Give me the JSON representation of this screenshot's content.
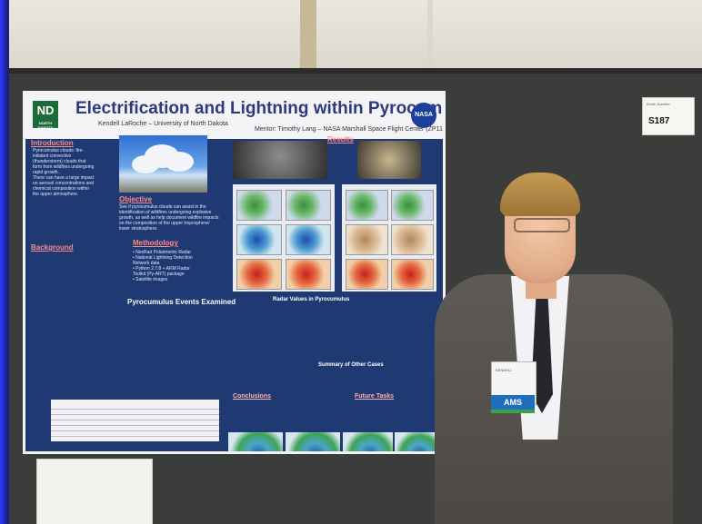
{
  "poster": {
    "title": "Electrification and Lightning within Pyrocumulus Clouds",
    "author": "Kendell LaRoche – University of North Dakota",
    "mentor": "Mentor: Timothy Lang – NASA Marshall Space Flight Center (ZP11)",
    "und_logo": "ND",
    "und_logo_sub": "NORTH DAKOTA",
    "nasa_logo": "NASA",
    "sections": {
      "introduction": "Introduction",
      "background": "Background",
      "objective": "Objective",
      "methodology": "Methodology",
      "results": "Results",
      "events_examined": "Pyrocumulus Events Examined",
      "conclusions": "Conclusions",
      "future_tasks": "Future Tasks",
      "radar_values": "Radar Values in Pyrocumulus",
      "summary_other": "Summary of Other Cases"
    },
    "intro_lines": [
      "Pyrocumulus clouds: fire-",
      "initiated convective",
      "(thunderstorm) clouds that",
      "form from wildfires undergoing",
      "rapid growth.",
      "There can have a large impact",
      "on aerosol concentrations and",
      "chemical composition within",
      "the upper atmosphere."
    ],
    "objective_lines": [
      "See if pyrocumulus clouds can assist in the",
      "identification of wildfires undergoing explosive",
      "growth, as well as help document wildfire impacts",
      "on the composition of the upper troposphere/",
      "lower stratosphere."
    ],
    "method_lines": [
      "• NexRad Polarimetric Radar",
      "• National Lightning Detection",
      "  Network data",
      "• Python 2.7.8 + ARM Radar",
      "  Toolkit (Py-ART) package",
      "• Satellite images"
    ]
  },
  "booth_sign": {
    "small_text": "Booth Number",
    "number": "S187"
  },
  "name_badge": {
    "text": "KENDELL",
    "org": "AMS"
  },
  "colors": {
    "poster_bg": "#1f3a72",
    "title": "#2e3a7a",
    "section_head": "#ff8a8a",
    "ams_blue": "#1f6fbf"
  }
}
